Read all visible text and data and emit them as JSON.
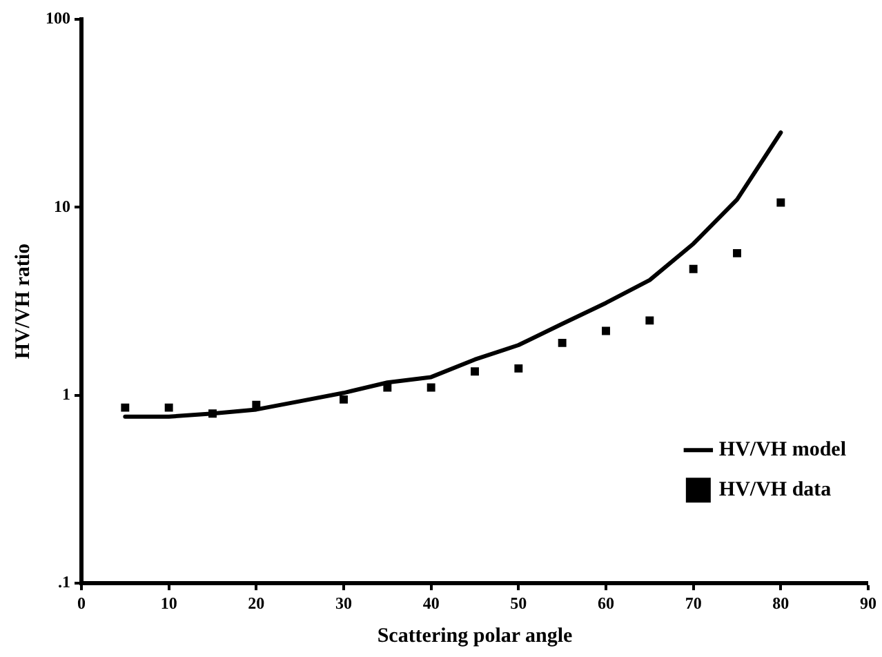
{
  "chart_data": {
    "type": "line",
    "xlabel": "Scattering polar angle",
    "ylabel": "HV/VH ratio",
    "log": "y",
    "xlim": [
      0,
      90
    ],
    "xticks": [
      0,
      10,
      20,
      30,
      40,
      50,
      60,
      70,
      80,
      90
    ],
    "ylim": [
      0.1,
      100
    ],
    "yticks": [
      {
        "value": 0.1,
        "label": ".1"
      },
      1,
      10,
      100
    ],
    "grid": false,
    "legend": "bottom right",
    "line_style": "solid",
    "series": [
      {
        "name": "HV/VH model",
        "color": "#000000",
        "marker": "none",
        "x": [
          5,
          10,
          15,
          20,
          25,
          30,
          35,
          40,
          45,
          50,
          55,
          60,
          65,
          70,
          75,
          80
        ],
        "values": [
          0.77,
          0.77,
          0.8,
          0.84,
          0.93,
          1.03,
          1.17,
          1.25,
          1.55,
          1.85,
          2.4,
          3.1,
          4.1,
          6.4,
          11,
          25
        ]
      },
      {
        "name": "HV/VH data",
        "type": "scatter",
        "color": "#000000",
        "marker": "square",
        "x": [
          5,
          10,
          15,
          20,
          30,
          35,
          40,
          45,
          50,
          55,
          60,
          65,
          70,
          75,
          80
        ],
        "values": [
          0.86,
          0.86,
          0.8,
          0.89,
          0.95,
          1.1,
          1.1,
          1.34,
          1.39,
          1.9,
          2.2,
          2.5,
          4.7,
          5.7,
          10.6
        ]
      }
    ]
  }
}
